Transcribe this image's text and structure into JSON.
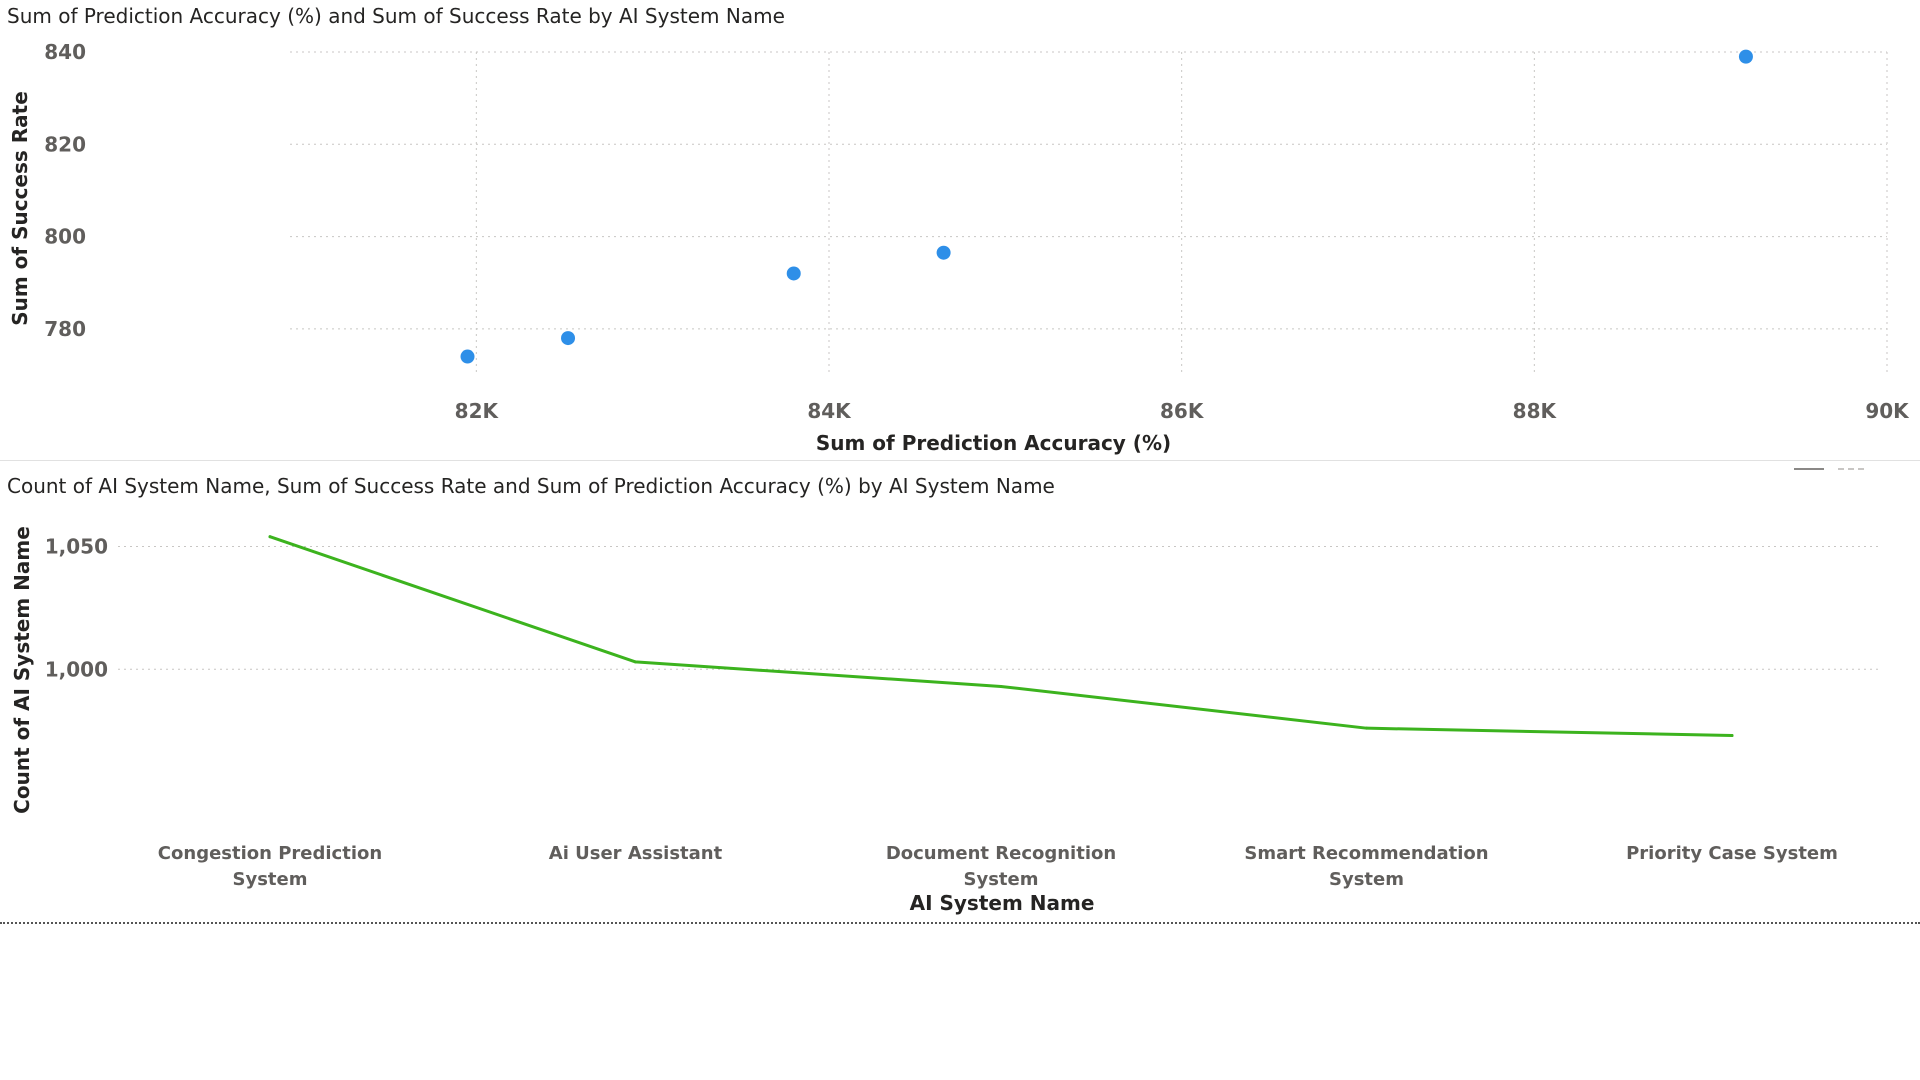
{
  "charts": {
    "scatter": {
      "title": "Sum of Prediction Accuracy (%) and Sum of Success Rate by AI System Name"
    },
    "line": {
      "title": "Count of AI System Name, Sum of Success Rate and Sum of Prediction Accuracy (%) by AI System Name"
    }
  },
  "chart_data": [
    {
      "type": "scatter",
      "title": "Sum of Prediction Accuracy (%) and Sum of Success Rate by AI System Name",
      "xlabel": "Sum of Prediction Accuracy (%)",
      "ylabel": "Sum of Success Rate",
      "xlim": [
        81000,
        90000
      ],
      "ylim": [
        770,
        840
      ],
      "x_ticks": [
        82000,
        84000,
        86000,
        88000,
        90000
      ],
      "x_tick_labels": [
        "82K",
        "84K",
        "86K",
        "88K",
        "90K"
      ],
      "y_ticks": [
        780,
        800,
        820,
        840
      ],
      "y_tick_labels": [
        "780",
        "800",
        "820",
        "840"
      ],
      "grid": true,
      "color": "#2e8fe8",
      "points": [
        {
          "x": 81950,
          "y": 774
        },
        {
          "x": 82520,
          "y": 778
        },
        {
          "x": 83800,
          "y": 792
        },
        {
          "x": 84650,
          "y": 796.5
        },
        {
          "x": 89200,
          "y": 839
        }
      ]
    },
    {
      "type": "line",
      "title": "Count of AI System Name, Sum of Success Rate and Sum of Prediction Accuracy (%) by AI System Name",
      "xlabel": "AI System Name",
      "ylabel": "Count of AI System Name",
      "categories": [
        "Congestion Prediction System",
        "Ai User Assistant",
        "Document Recognition System",
        "Smart Recommendation System",
        "Priority Case System"
      ],
      "ylim": [
        950,
        1060
      ],
      "y_ticks": [
        1000,
        1050
      ],
      "y_tick_labels": [
        "1,000",
        "1,050"
      ],
      "grid": true,
      "color": "#3cb31e",
      "series": [
        {
          "values": [
            1054,
            1003,
            993,
            976,
            973
          ]
        }
      ]
    }
  ]
}
